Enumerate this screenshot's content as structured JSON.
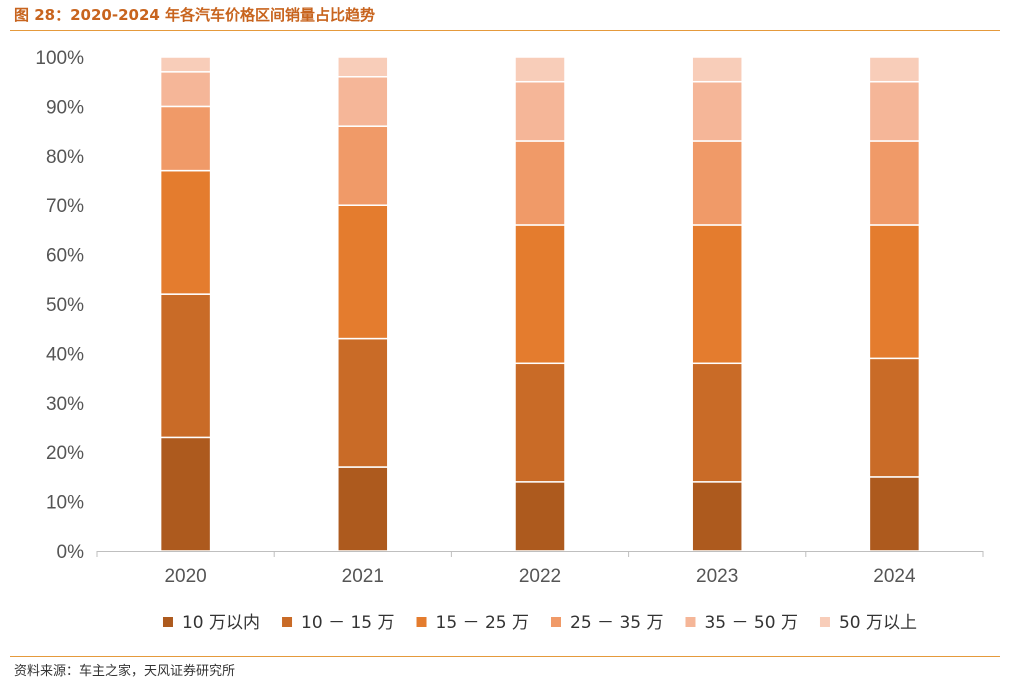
{
  "figure": {
    "title": "图 28：2020-2024 年各汽车价格区间销量占比趋势",
    "source": "资料来源：车主之家，天风证券研究所"
  },
  "chart_data": {
    "type": "bar",
    "stacked": true,
    "title": "图 28：2020-2024 年各汽车价格区间销量占比趋势",
    "xlabel": "",
    "ylabel": "",
    "ylim": [
      0,
      100
    ],
    "y_ticks": [
      "0%",
      "10%",
      "20%",
      "30%",
      "40%",
      "50%",
      "60%",
      "70%",
      "80%",
      "90%",
      "100%"
    ],
    "categories": [
      "2020",
      "2021",
      "2022",
      "2023",
      "2024"
    ],
    "legend_position": "bottom",
    "grid": false,
    "series": [
      {
        "name": "10 万以内",
        "color": "#ad5a1e",
        "values": [
          23,
          17,
          14,
          14,
          15
        ]
      },
      {
        "name": "10 － 15 万",
        "color": "#c96b27",
        "values": [
          29,
          26,
          24,
          24,
          24
        ]
      },
      {
        "name": "15 － 25 万",
        "color": "#e47c2e",
        "values": [
          25,
          27,
          28,
          28,
          27
        ]
      },
      {
        "name": "25 － 35 万",
        "color": "#f09a68",
        "values": [
          13,
          16,
          17,
          17,
          17
        ]
      },
      {
        "name": "35 － 50 万",
        "color": "#f5b698",
        "values": [
          7,
          10,
          12,
          12,
          12
        ]
      },
      {
        "name": "50 万以上",
        "color": "#f8cdb9",
        "values": [
          3,
          4,
          5,
          5,
          5
        ]
      }
    ]
  }
}
